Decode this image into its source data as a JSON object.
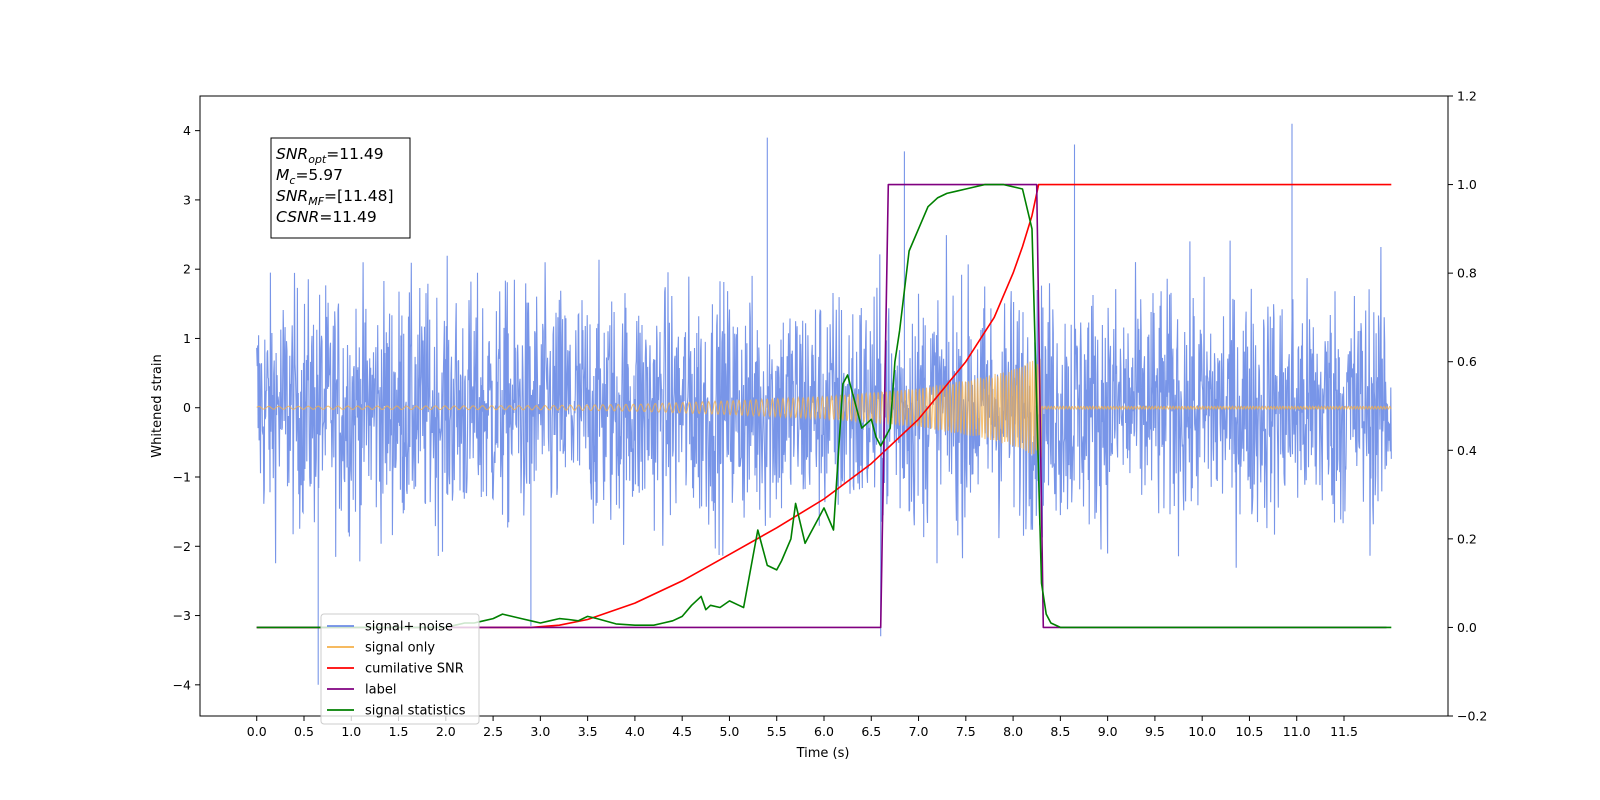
{
  "chart_data": {
    "type": "line",
    "xlabel": "Time (s)",
    "ylabel": "Whitened strain",
    "xlim": [
      -0.6,
      12.6
    ],
    "ylim": [
      -4.45,
      4.5
    ],
    "ylim_right": [
      -0.2,
      1.2
    ],
    "x_ticks": [
      "0.0",
      "0.5",
      "1.0",
      "1.5",
      "2.0",
      "2.5",
      "3.0",
      "3.5",
      "4.0",
      "4.5",
      "5.0",
      "5.5",
      "6.0",
      "6.5",
      "7.0",
      "7.5",
      "8.0",
      "8.5",
      "9.0",
      "9.5",
      "10.0",
      "10.5",
      "11.0",
      "11.5"
    ],
    "y_ticks_left": [
      "4",
      "3",
      "2",
      "1",
      "0",
      "−1",
      "−2",
      "−3",
      "−4"
    ],
    "y_ticks_right": [
      "1.2",
      "1.0",
      "0.8",
      "0.6",
      "0.4",
      "0.2",
      "0.0",
      "−0.2"
    ],
    "grid": false,
    "legend_position": "lower-left",
    "annotation": {
      "lines": [
        {
          "sym": "SNR",
          "sub": "opt",
          "val": "=11.49"
        },
        {
          "sym": "M",
          "sub": "c",
          "val": "=5.97"
        },
        {
          "sym": "SNR",
          "sub": "MF",
          "val": "=[11.48]"
        },
        {
          "sym": "CSNR",
          "sub": "",
          "val": "=11.49"
        }
      ]
    },
    "series": [
      {
        "name": "signal+ noise",
        "axis": "left",
        "color": "#6d8ce6",
        "kind": "noise",
        "x_range": [
          0.0,
          12.0
        ],
        "std": 0.85,
        "peaks": [
          [
            5.4,
            3.9
          ],
          [
            6.85,
            3.7
          ],
          [
            8.65,
            3.8
          ],
          [
            10.95,
            4.1
          ],
          [
            0.65,
            -4.0
          ],
          [
            6.6,
            -3.3
          ],
          [
            2.9,
            -3.15
          ]
        ]
      },
      {
        "name": "signal only",
        "axis": "left",
        "color": "#f5b049",
        "kind": "chirp",
        "x_range": [
          0.0,
          12.0
        ],
        "merger": 8.3,
        "envelope": [
          [
            0.0,
            0.02
          ],
          [
            3.0,
            0.03
          ],
          [
            4.0,
            0.05
          ],
          [
            5.0,
            0.1
          ],
          [
            6.0,
            0.16
          ],
          [
            7.0,
            0.28
          ],
          [
            7.6,
            0.42
          ],
          [
            8.0,
            0.55
          ],
          [
            8.2,
            0.68
          ],
          [
            8.3,
            0.72
          ]
        ]
      },
      {
        "name": "cumilative SNR",
        "axis": "right",
        "color": "#ff0000",
        "x": [
          0.0,
          2.0,
          2.9,
          3.2,
          3.5,
          4.0,
          4.5,
          5.0,
          5.5,
          6.0,
          6.5,
          7.0,
          7.5,
          7.8,
          8.0,
          8.1,
          8.2,
          8.27,
          8.3,
          12.0
        ],
        "y": [
          0.0,
          0.0,
          0.0,
          0.005,
          0.018,
          0.055,
          0.105,
          0.165,
          0.225,
          0.29,
          0.37,
          0.47,
          0.6,
          0.7,
          0.8,
          0.86,
          0.93,
          1.0,
          1.0,
          1.0
        ]
      },
      {
        "name": "label",
        "axis": "right",
        "color": "#800080",
        "x": [
          0.0,
          6.6,
          6.68,
          8.25,
          8.32,
          11.95
        ],
        "y": [
          0.0,
          0.0,
          1.0,
          1.0,
          0.0,
          0.0
        ]
      },
      {
        "name": "signal statistics",
        "axis": "right",
        "color": "#008000",
        "x": [
          0.0,
          2.0,
          2.1,
          2.2,
          2.3,
          2.4,
          2.5,
          2.6,
          2.7,
          2.8,
          2.9,
          3.0,
          3.1,
          3.2,
          3.3,
          3.4,
          3.5,
          3.6,
          3.8,
          4.0,
          4.2,
          4.3,
          4.4,
          4.5,
          4.6,
          4.7,
          4.75,
          4.8,
          4.9,
          5.0,
          5.1,
          5.15,
          5.3,
          5.4,
          5.5,
          5.55,
          5.65,
          5.7,
          5.8,
          5.85,
          5.95,
          6.0,
          6.1,
          6.2,
          6.25,
          6.3,
          6.4,
          6.5,
          6.55,
          6.6,
          6.7,
          6.75,
          6.8,
          6.9,
          7.0,
          7.1,
          7.2,
          7.3,
          7.4,
          7.5,
          7.7,
          7.9,
          8.1,
          8.2,
          8.3,
          8.35,
          8.4,
          8.5,
          12.0
        ],
        "y": [
          0.0,
          0.0,
          0.005,
          0.01,
          0.01,
          0.015,
          0.02,
          0.03,
          0.025,
          0.02,
          0.015,
          0.01,
          0.015,
          0.02,
          0.018,
          0.015,
          0.025,
          0.02,
          0.008,
          0.005,
          0.005,
          0.01,
          0.015,
          0.025,
          0.05,
          0.07,
          0.04,
          0.05,
          0.045,
          0.06,
          0.05,
          0.045,
          0.22,
          0.14,
          0.13,
          0.15,
          0.2,
          0.28,
          0.19,
          0.21,
          0.25,
          0.27,
          0.22,
          0.55,
          0.57,
          0.53,
          0.45,
          0.47,
          0.43,
          0.41,
          0.45,
          0.6,
          0.67,
          0.85,
          0.9,
          0.95,
          0.97,
          0.98,
          0.985,
          0.99,
          1.0,
          1.0,
          0.99,
          0.9,
          0.1,
          0.03,
          0.01,
          0.0,
          0.0
        ]
      }
    ]
  }
}
